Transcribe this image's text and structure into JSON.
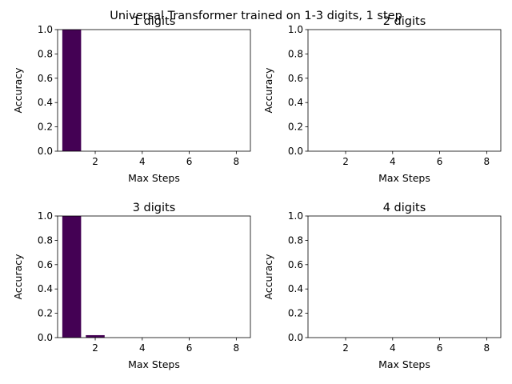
{
  "figure": {
    "suptitle": "Universal Transformer trained on 1-3 digits, 1 step"
  },
  "chart_data": [
    {
      "type": "bar",
      "title": "1 digits",
      "xlabel": "Max Steps",
      "ylabel": "Accuracy",
      "x": [
        1,
        2,
        3,
        4,
        5,
        6,
        7,
        8
      ],
      "values": [
        1.0,
        0,
        0,
        0,
        0,
        0,
        0,
        0
      ],
      "xlim": [
        0.4,
        8.6
      ],
      "ylim": [
        0,
        1.0
      ],
      "xticks": [
        2,
        4,
        6,
        8
      ],
      "xtick_labels": [
        "2",
        "4",
        "6",
        "8"
      ],
      "yticks": [
        0,
        0.2,
        0.4,
        0.6,
        0.8,
        1.0
      ],
      "ytick_labels": [
        "0.0",
        "0.2",
        "0.4",
        "0.6",
        "0.8",
        "1.0"
      ],
      "grid": false,
      "bar_color": "#440154"
    },
    {
      "type": "bar",
      "title": "2 digits",
      "xlabel": "Max Steps",
      "ylabel": "Accuracy",
      "x": [
        1,
        2,
        3,
        4,
        5,
        6,
        7,
        8
      ],
      "values": [
        0,
        0,
        0,
        0,
        0,
        0,
        0,
        0
      ],
      "xlim": [
        0.4,
        8.6
      ],
      "ylim": [
        0,
        1.0
      ],
      "xticks": [
        2,
        4,
        6,
        8
      ],
      "xtick_labels": [
        "2",
        "4",
        "6",
        "8"
      ],
      "yticks": [
        0,
        0.2,
        0.4,
        0.6,
        0.8,
        1.0
      ],
      "ytick_labels": [
        "0.0",
        "0.2",
        "0.4",
        "0.6",
        "0.8",
        "1.0"
      ],
      "grid": false,
      "bar_color": "#440154"
    },
    {
      "type": "bar",
      "title": "3 digits",
      "xlabel": "Max Steps",
      "ylabel": "Accuracy",
      "x": [
        1,
        2,
        3,
        4,
        5,
        6,
        7,
        8
      ],
      "values": [
        1.0,
        0.02,
        0,
        0,
        0,
        0,
        0,
        0
      ],
      "xlim": [
        0.4,
        8.6
      ],
      "ylim": [
        0,
        1.0
      ],
      "xticks": [
        2,
        4,
        6,
        8
      ],
      "xtick_labels": [
        "2",
        "4",
        "6",
        "8"
      ],
      "yticks": [
        0,
        0.2,
        0.4,
        0.6,
        0.8,
        1.0
      ],
      "ytick_labels": [
        "0.0",
        "0.2",
        "0.4",
        "0.6",
        "0.8",
        "1.0"
      ],
      "grid": false,
      "bar_color": "#440154"
    },
    {
      "type": "bar",
      "title": "4 digits",
      "xlabel": "Max Steps",
      "ylabel": "Accuracy",
      "x": [
        1,
        2,
        3,
        4,
        5,
        6,
        7,
        8
      ],
      "values": [
        0,
        0,
        0,
        0,
        0,
        0,
        0,
        0
      ],
      "xlim": [
        0.4,
        8.6
      ],
      "ylim": [
        0,
        1.0
      ],
      "xticks": [
        2,
        4,
        6,
        8
      ],
      "xtick_labels": [
        "2",
        "4",
        "6",
        "8"
      ],
      "yticks": [
        0,
        0.2,
        0.4,
        0.6,
        0.8,
        1.0
      ],
      "ytick_labels": [
        "0.0",
        "0.2",
        "0.4",
        "0.6",
        "0.8",
        "1.0"
      ],
      "grid": false,
      "bar_color": "#440154"
    }
  ]
}
